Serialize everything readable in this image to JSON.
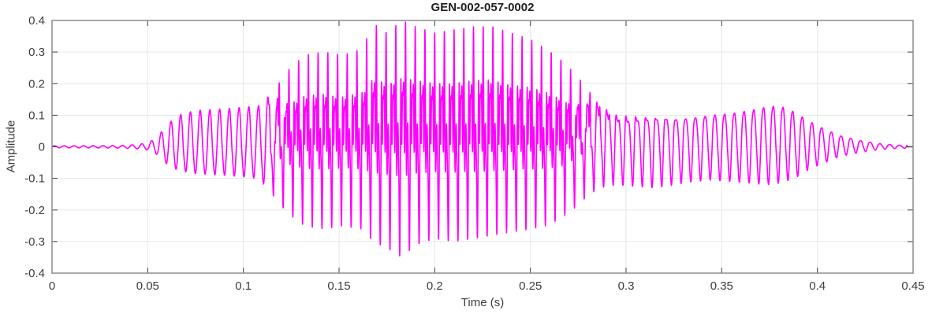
{
  "chart_data": {
    "type": "line",
    "title": "GEN-002-057-0002",
    "xlabel": "Time (s)",
    "ylabel": "Amplitude",
    "xlim": [
      0,
      0.45
    ],
    "ylim": [
      -0.4,
      0.4
    ],
    "grid": true,
    "xticks": {
      "values": [
        0,
        0.05,
        0.1,
        0.15,
        0.2,
        0.25,
        0.3,
        0.35,
        0.4,
        0.45
      ],
      "labels": [
        "0",
        "0.05",
        "0.1",
        "0.15",
        "0.2",
        "0.25",
        "0.3",
        "0.35",
        "0.4",
        "0.45"
      ]
    },
    "yticks": {
      "values": [
        -0.4,
        -0.3,
        -0.2,
        -0.1,
        0,
        0.1,
        0.2,
        0.3,
        0.4
      ],
      "labels": [
        "-0.4",
        "-0.3",
        "-0.2",
        "-0.1",
        "0",
        "0.1",
        "0.2",
        "0.3",
        "0.4"
      ]
    },
    "line_color": "#FF00FF",
    "end_segment_color": "#1a1a1a",
    "signal": {
      "kind": "speech-waveform-envelope-model",
      "f0_hz": 197,
      "t_start": 0.0,
      "t_end": 0.4467,
      "harmonic_orders": [
        1,
        2,
        3,
        4,
        6
      ],
      "harmonic_phases": [
        0,
        1.3,
        2.1,
        4.0,
        5.5
      ],
      "harmonic_weight_times": [
        0,
        0.05,
        0.112,
        0.125,
        0.268,
        0.285,
        0.3,
        0.335,
        0.36,
        0.45
      ],
      "harmonic_weights": {
        "h1": [
          1,
          1,
          1,
          1,
          1,
          1,
          1,
          1,
          1,
          1
        ],
        "h2": [
          0.05,
          0.05,
          0.1,
          0.55,
          0.55,
          0.45,
          0.45,
          0.25,
          0.2,
          0.2
        ],
        "h3": [
          0,
          0,
          0.05,
          0.5,
          0.5,
          0.15,
          0.1,
          0.05,
          0.05,
          0.05
        ],
        "h4": [
          0,
          0,
          0,
          0.85,
          0.85,
          0.1,
          0,
          0,
          0,
          0
        ],
        "h6": [
          0,
          0,
          0,
          0.4,
          0.4,
          0.05,
          0,
          0,
          0,
          0
        ]
      },
      "envelope_times": [
        0,
        0.036,
        0.044,
        0.05,
        0.055,
        0.06,
        0.066,
        0.075,
        0.09,
        0.1,
        0.108,
        0.115,
        0.123,
        0.132,
        0.142,
        0.152,
        0.162,
        0.168,
        0.175,
        0.183,
        0.19,
        0.2,
        0.21,
        0.22,
        0.23,
        0.24,
        0.25,
        0.258,
        0.265,
        0.272,
        0.279,
        0.286,
        0.295,
        0.305,
        0.315,
        0.325,
        0.335,
        0.345,
        0.355,
        0.365,
        0.373,
        0.38,
        0.388,
        0.396,
        0.404,
        0.412,
        0.422,
        0.432,
        0.442,
        0.45
      ],
      "envelope_pos": [
        0.003,
        0.004,
        0.007,
        0.012,
        0.03,
        0.07,
        0.1,
        0.115,
        0.12,
        0.125,
        0.13,
        0.17,
        0.24,
        0.29,
        0.3,
        0.29,
        0.31,
        0.39,
        0.36,
        0.4,
        0.38,
        0.36,
        0.37,
        0.38,
        0.38,
        0.36,
        0.34,
        0.31,
        0.28,
        0.24,
        0.19,
        0.13,
        0.1,
        0.095,
        0.09,
        0.085,
        0.09,
        0.1,
        0.105,
        0.115,
        0.125,
        0.13,
        0.11,
        0.08,
        0.055,
        0.035,
        0.02,
        0.01,
        0.005,
        0.004
      ],
      "envelope_neg": [
        0.003,
        0.004,
        0.006,
        0.01,
        0.025,
        0.055,
        0.075,
        0.085,
        0.09,
        0.095,
        0.1,
        0.15,
        0.21,
        0.25,
        0.26,
        0.25,
        0.26,
        0.3,
        0.32,
        0.35,
        0.31,
        0.29,
        0.3,
        0.29,
        0.28,
        0.27,
        0.26,
        0.25,
        0.23,
        0.2,
        0.16,
        0.13,
        0.12,
        0.125,
        0.13,
        0.12,
        0.11,
        0.105,
        0.11,
        0.115,
        0.12,
        0.115,
        0.1,
        0.07,
        0.05,
        0.03,
        0.018,
        0.009,
        0.005,
        0.004
      ]
    },
    "colors": {
      "frame": "#8c8c8c",
      "grid": "#e6e6e6",
      "tick": "#404040",
      "text": "#3d3d3d",
      "title": "#1f1f1f",
      "background": "#ffffff"
    }
  }
}
